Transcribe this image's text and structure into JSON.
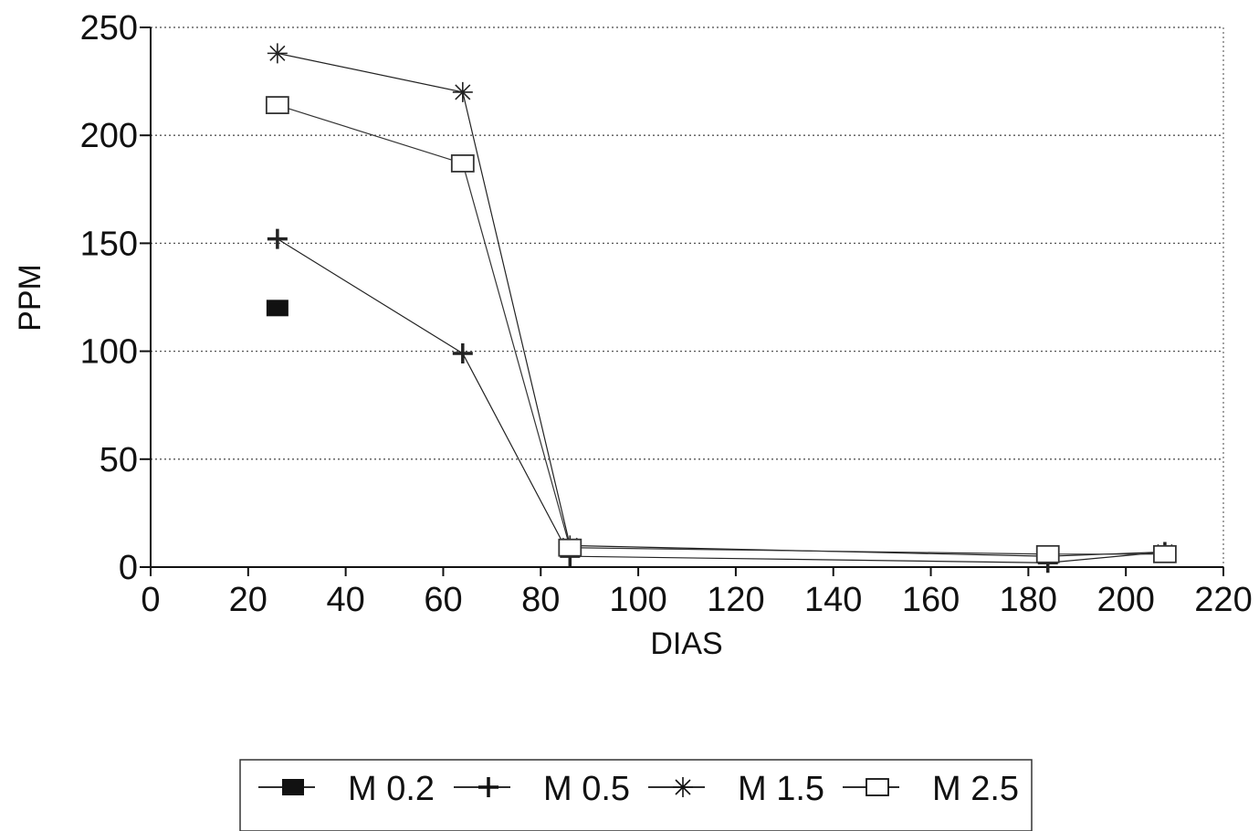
{
  "chart_data": {
    "type": "line",
    "title": "",
    "xlabel": "DIAS",
    "ylabel": "PPM",
    "xlim": [
      0,
      220
    ],
    "ylim": [
      0,
      250
    ],
    "xticks": [
      0,
      20,
      40,
      60,
      80,
      100,
      120,
      140,
      160,
      180,
      200,
      220
    ],
    "yticks": [
      0,
      50,
      100,
      150,
      200,
      250
    ],
    "grid": "horizontal-dotted",
    "legend": "bottom",
    "series": [
      {
        "name": "M 0.2",
        "marker": "filled-square",
        "color": "#111111",
        "x": [
          26
        ],
        "y": [
          120
        ]
      },
      {
        "name": "M 0.5",
        "marker": "plus",
        "color": "#222222",
        "x": [
          26,
          64,
          86,
          184,
          208
        ],
        "y": [
          152,
          99,
          5,
          2,
          7
        ]
      },
      {
        "name": "M 1.5",
        "marker": "asterisk",
        "color": "#222222",
        "x": [
          26,
          64,
          86,
          184,
          208
        ],
        "y": [
          238,
          220,
          10,
          5,
          7
        ]
      },
      {
        "name": "M 2.5",
        "marker": "open-square",
        "color": "#333333",
        "x": [
          26,
          64,
          86,
          184,
          208
        ],
        "y": [
          214,
          187,
          9,
          6,
          6
        ]
      }
    ]
  }
}
